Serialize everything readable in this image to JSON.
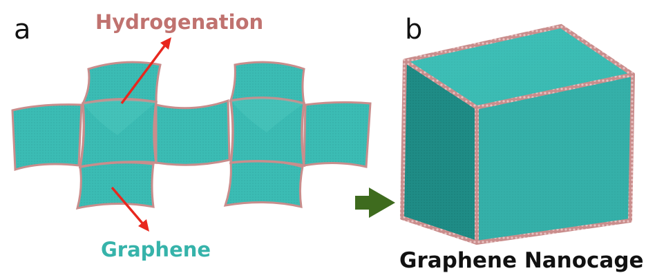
{
  "panels": {
    "a": {
      "letter": "a"
    },
    "b": {
      "letter": "b"
    }
  },
  "labels": {
    "hydrogenation": "Hydrogenation",
    "graphene": "Graphene",
    "nanocage": "Graphene Nanocage"
  },
  "colors": {
    "graphene": "#3bbcb4",
    "graphene_dark": "#2a9c95",
    "hydrogen_edge": "#c98d8c",
    "hydrogenation_text": "#c0726f",
    "graphene_text": "#36b3aa",
    "pointer_arrow": "#e8271e",
    "transition_arrow": "#3e6b1e",
    "text_dark": "#111111"
  },
  "icons": {
    "pointer": "red-arrow-icon",
    "transition": "green-arrow-icon"
  }
}
